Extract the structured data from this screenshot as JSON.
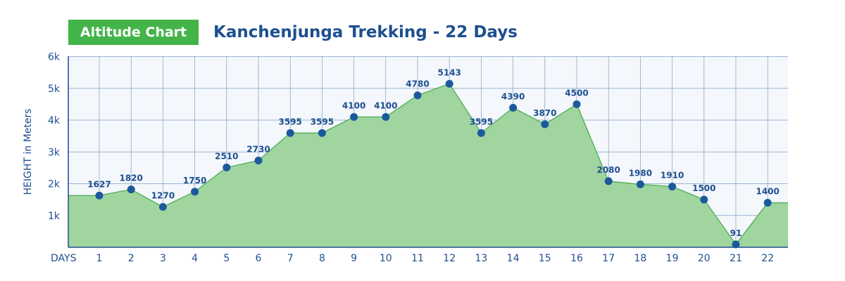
{
  "header": {
    "badge": "Altitude Chart",
    "title": "Kanchenjunga Trekking - 22 Days"
  },
  "chart_data": {
    "type": "area",
    "title": "Kanchenjunga Trekking - 22 Days",
    "xlabel": "DAYS",
    "ylabel": "HEIGHT in Meters",
    "x": [
      1,
      2,
      3,
      4,
      5,
      6,
      7,
      8,
      9,
      10,
      11,
      12,
      13,
      14,
      15,
      16,
      17,
      18,
      19,
      20,
      21,
      22
    ],
    "values": [
      1627,
      1820,
      1270,
      1750,
      2510,
      2730,
      3595,
      3595,
      4100,
      4100,
      4780,
      5143,
      3595,
      4390,
      3870,
      4500,
      2080,
      1980,
      1910,
      1500,
      91,
      1400
    ],
    "ylim": [
      0,
      6000
    ],
    "yticks": [
      1000,
      2000,
      3000,
      4000,
      5000,
      6000
    ],
    "ytick_labels": [
      "1k",
      "2k",
      "3k",
      "4k",
      "5k",
      "6k"
    ],
    "grid": true,
    "colors": {
      "area": "#a0d5a0",
      "line": "#5ab35f",
      "marker": "#1a5a9c",
      "grid": "#7d9fc6",
      "text": "#1d4f8f",
      "badge": "#43b449",
      "plot_bg": "#f4f7fb"
    }
  }
}
